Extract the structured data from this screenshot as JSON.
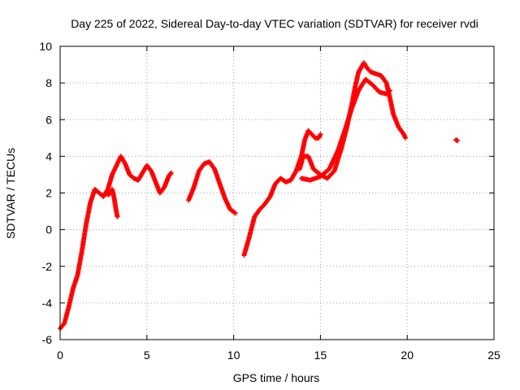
{
  "chart_data": {
    "type": "scatter",
    "title": "Day 225 of 2022, Sidereal Day-to-day VTEC variation (SDTVAR) for receiver rvdi",
    "xlabel": "GPS time / hours",
    "ylabel": "SDTVAR / TECUs",
    "xlim": [
      0,
      25
    ],
    "ylim": [
      -6,
      10
    ],
    "xticks": [
      0,
      5,
      10,
      15,
      20,
      25
    ],
    "yticks": [
      -6,
      -4,
      -2,
      0,
      2,
      4,
      6,
      8,
      10
    ],
    "grid": true,
    "marker": "+",
    "color": "#ff0000",
    "series": [
      {
        "name": "segment-1",
        "x": [
          0.0,
          0.25,
          0.5,
          0.75,
          1.0,
          1.25,
          1.5,
          1.75,
          2.0,
          2.25,
          2.5,
          2.75,
          3.0,
          3.25,
          3.5,
          3.75,
          4.0,
          4.25,
          4.5,
          4.75,
          5.0,
          5.25,
          5.5,
          5.75,
          6.0,
          6.25,
          6.4
        ],
        "y": [
          -5.4,
          -5.1,
          -4.2,
          -3.2,
          -2.5,
          -1.2,
          0.3,
          1.5,
          2.2,
          2.0,
          1.8,
          2.2,
          3.0,
          3.5,
          4.0,
          3.6,
          3.0,
          2.8,
          2.7,
          3.1,
          3.5,
          3.2,
          2.6,
          2.0,
          2.3,
          2.9,
          3.1
        ]
      },
      {
        "name": "segment-1-dip",
        "x": [
          2.6,
          2.8,
          3.0,
          3.1,
          3.2,
          3.3
        ],
        "y": [
          2.0,
          1.9,
          2.2,
          1.8,
          1.2,
          0.7
        ]
      },
      {
        "name": "segment-2",
        "x": [
          7.4,
          7.7,
          8.0,
          8.3,
          8.6,
          8.9,
          9.2,
          9.5,
          9.8,
          10.1
        ],
        "y": [
          1.6,
          2.3,
          3.2,
          3.6,
          3.7,
          3.3,
          2.5,
          1.7,
          1.1,
          0.9
        ]
      },
      {
        "name": "segment-3",
        "x": [
          10.6,
          10.9,
          11.2,
          11.5,
          11.8,
          12.1,
          12.4,
          12.7,
          13.0,
          13.3,
          13.6,
          13.9,
          14.1,
          14.3,
          14.5,
          14.7,
          14.9,
          15.0
        ],
        "y": [
          -1.4,
          -0.4,
          0.7,
          1.1,
          1.4,
          1.8,
          2.5,
          2.8,
          2.6,
          2.7,
          3.2,
          4.0,
          4.9,
          5.4,
          5.2,
          5.0,
          5.0,
          5.2
        ]
      },
      {
        "name": "segment-3-loop",
        "x": [
          13.8,
          14.0,
          14.3,
          14.6,
          15.0,
          15.4,
          15.8,
          16.2,
          16.5,
          16.8,
          17.0,
          17.2,
          17.5,
          17.7,
          17.9,
          18.2,
          18.5,
          18.8,
          19.0,
          19.2,
          19.5,
          19.8,
          19.9
        ],
        "y": [
          3.3,
          4.0,
          4.0,
          3.3,
          3.0,
          2.8,
          3.2,
          4.4,
          5.5,
          6.8,
          7.8,
          8.6,
          9.1,
          8.8,
          8.6,
          8.5,
          8.4,
          8.0,
          7.2,
          6.3,
          5.6,
          5.2,
          5.0
        ]
      },
      {
        "name": "segment-3-lower",
        "x": [
          13.9,
          14.4,
          15.0,
          15.5,
          16.0,
          16.4,
          16.8,
          17.2,
          17.6,
          18.0,
          18.4,
          18.8,
          19.0
        ],
        "y": [
          2.8,
          2.7,
          2.9,
          3.3,
          4.3,
          5.4,
          6.6,
          7.6,
          8.2,
          7.9,
          7.5,
          7.4,
          7.6
        ]
      },
      {
        "name": "segment-4",
        "x": [
          22.8,
          22.9
        ],
        "y": [
          4.9,
          4.85
        ]
      }
    ]
  }
}
